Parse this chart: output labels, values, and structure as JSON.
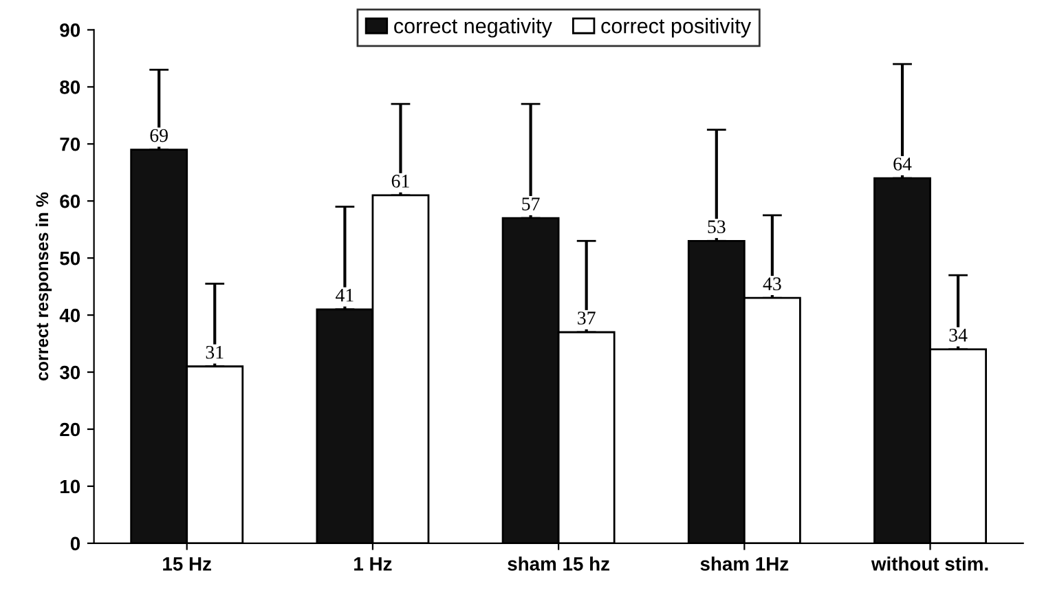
{
  "chart_data": {
    "type": "bar",
    "ylabel": "correct responses in %",
    "categories": [
      "15 Hz",
      "1 Hz",
      "sham 15 hz",
      "sham 1Hz",
      "without stim."
    ],
    "series": [
      {
        "name": "correct negativity",
        "color": "#111111",
        "values": [
          69,
          41,
          57,
          53,
          64
        ],
        "errors": [
          [
            69,
            83
          ],
          [
            41,
            59
          ],
          [
            57,
            77
          ],
          [
            53,
            72.5
          ],
          [
            64,
            84
          ]
        ]
      },
      {
        "name": "correct positivity",
        "color": "#ffffff",
        "values": [
          31,
          61,
          37,
          43,
          34
        ],
        "errors": [
          [
            31,
            45.5
          ],
          [
            61,
            77
          ],
          [
            37,
            53
          ],
          [
            43,
            57.5
          ],
          [
            34,
            47
          ]
        ]
      }
    ],
    "ylim": [
      0,
      90
    ],
    "yticks": [
      0,
      10,
      20,
      30,
      40,
      50,
      60,
      70,
      80,
      90
    ],
    "data_labels": true,
    "legend": "top",
    "grid": false
  }
}
